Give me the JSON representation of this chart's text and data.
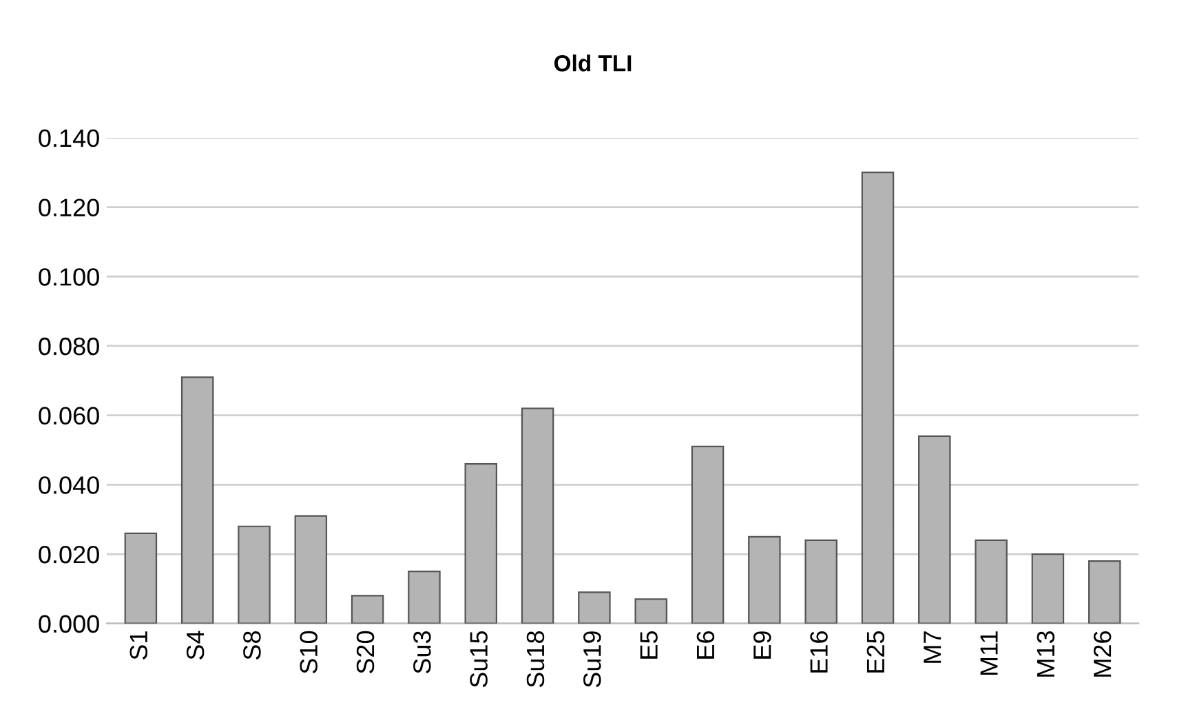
{
  "chart_data": {
    "type": "bar",
    "title": "Old TLI",
    "categories": [
      "S1",
      "S4",
      "S8",
      "S10",
      "S20",
      "Su3",
      "Su15",
      "Su18",
      "Su19",
      "E5",
      "E6",
      "E9",
      "E16",
      "E25",
      "M7",
      "M11",
      "M13",
      "M26"
    ],
    "values": [
      0.026,
      0.071,
      0.028,
      0.031,
      0.008,
      0.015,
      0.046,
      0.062,
      0.009,
      0.007,
      0.051,
      0.025,
      0.024,
      0.13,
      0.054,
      0.024,
      0.02,
      0.018
    ],
    "color": "#b4b4b4",
    "ylim": [
      0,
      0.14
    ],
    "yticks": [
      {
        "value": 0,
        "label": "0.000"
      },
      {
        "value": 0.02,
        "label": "0.020"
      },
      {
        "value": 0.04,
        "label": "0.040"
      },
      {
        "value": 0.06,
        "label": "0.060"
      },
      {
        "value": 0.08,
        "label": "0.080"
      },
      {
        "value": 0.1,
        "label": "0.100"
      },
      {
        "value": 0.12,
        "label": "0.120"
      },
      {
        "value": 0.14,
        "label": "0.140"
      }
    ],
    "grid": "y"
  }
}
